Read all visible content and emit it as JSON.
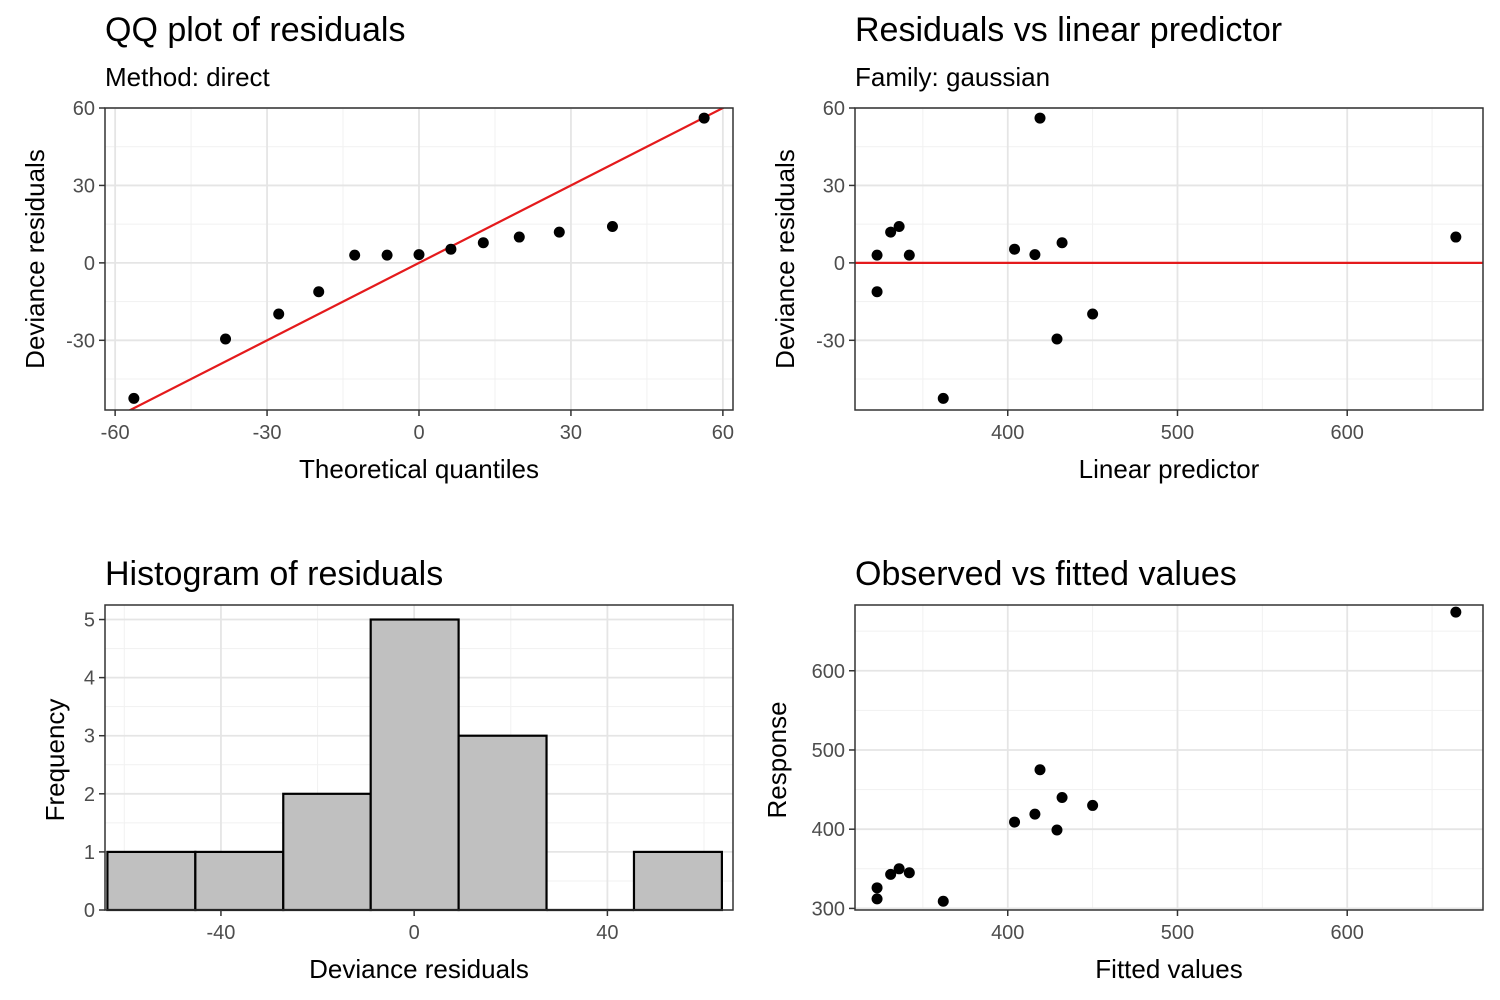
{
  "chart_data": [
    {
      "type": "scatter",
      "title": "QQ plot of residuals",
      "subtitle": "Method: direct",
      "xlabel": "Theoretical quantiles",
      "ylabel": "Deviance residuals",
      "xlim": [
        -62,
        62
      ],
      "ylim": [
        -57,
        60
      ],
      "xticks": [
        -60,
        -30,
        0,
        30,
        60
      ],
      "xtick_labels": [
        "-60",
        "-30",
        "0",
        "30",
        "60"
      ],
      "yticks": [
        -30,
        0,
        30,
        60
      ],
      "ytick_labels": [
        "-30",
        "0",
        "30",
        "60"
      ],
      "grid": true,
      "reference_line": {
        "type": "abline",
        "intercept": 0,
        "slope": 1,
        "color": "#e41a1c"
      },
      "series": [
        {
          "x": [
            -56.3,
            -38.2,
            -27.7,
            -19.8,
            -12.7,
            -6.3,
            0,
            6.3,
            12.7,
            19.8,
            27.7,
            38.2,
            56.3
          ],
          "y": [
            -52.5,
            -29.5,
            -19.8,
            -11.2,
            3.0,
            3.0,
            3.2,
            5.3,
            7.8,
            10.0,
            11.9,
            14.1,
            56.1
          ]
        }
      ]
    },
    {
      "type": "scatter",
      "title": "Residuals vs linear predictor",
      "subtitle": "Family: gaussian",
      "xlabel": "Linear predictor",
      "ylabel": "Deviance residuals",
      "xlim": [
        310,
        680
      ],
      "ylim": [
        -57,
        60
      ],
      "xticks": [
        400,
        500,
        600
      ],
      "xtick_labels": [
        "400",
        "500",
        "600"
      ],
      "yticks": [
        -30,
        0,
        30,
        60
      ],
      "ytick_labels": [
        "-30",
        "0",
        "30",
        "60"
      ],
      "grid": true,
      "reference_line": {
        "type": "hline",
        "y": 0,
        "color": "#e41a1c"
      },
      "series": [
        {
          "x": [
            323,
            323,
            331,
            336,
            342,
            362,
            404,
            416,
            419,
            429,
            432,
            450,
            664
          ],
          "y": [
            3.0,
            -11.2,
            11.9,
            14.1,
            3.0,
            -52.5,
            5.3,
            3.2,
            56.1,
            -29.5,
            7.8,
            -19.8,
            10.0
          ]
        }
      ]
    },
    {
      "type": "bar",
      "title": "Histogram of residuals",
      "xlabel": "Deviance residuals",
      "ylabel": "Frequency",
      "xlim": [
        -64,
        66
      ],
      "ylim": [
        0,
        5.25
      ],
      "xticks": [
        -40,
        0,
        40
      ],
      "xtick_labels": [
        "-40",
        "0",
        "40"
      ],
      "yticks": [
        0,
        1,
        2,
        3,
        4,
        5
      ],
      "ytick_labels": [
        "0",
        "1",
        "2",
        "3",
        "4",
        "5"
      ],
      "grid": true,
      "bar_fill": "#c0c0c0",
      "bar_edge": "#000000",
      "bins": [
        {
          "x0": -63.5,
          "x1": -45.3,
          "count": 1
        },
        {
          "x0": -45.3,
          "x1": -27.1,
          "count": 1
        },
        {
          "x0": -27.1,
          "x1": -9.0,
          "count": 2
        },
        {
          "x0": -9.0,
          "x1": 9.2,
          "count": 5
        },
        {
          "x0": 9.2,
          "x1": 27.4,
          "count": 3
        },
        {
          "x0": 27.4,
          "x1": 45.5,
          "count": 0
        },
        {
          "x0": 45.5,
          "x1": 63.7,
          "count": 1
        }
      ]
    },
    {
      "type": "scatter",
      "title": "Observed vs fitted values",
      "xlabel": "Fitted values",
      "ylabel": "Response",
      "xlim": [
        310,
        680
      ],
      "ylim": [
        298,
        683
      ],
      "xticks": [
        400,
        500,
        600
      ],
      "xtick_labels": [
        "400",
        "500",
        "600"
      ],
      "yticks": [
        300,
        400,
        500,
        600
      ],
      "ytick_labels": [
        "300",
        "400",
        "500",
        "600"
      ],
      "grid": true,
      "series": [
        {
          "x": [
            323,
            323,
            331,
            336,
            342,
            362,
            404,
            416,
            419,
            429,
            432,
            450,
            664
          ],
          "y": [
            326,
            312,
            343,
            350,
            345,
            309,
            409,
            419,
            475,
            399,
            440,
            430,
            674
          ]
        }
      ]
    }
  ]
}
